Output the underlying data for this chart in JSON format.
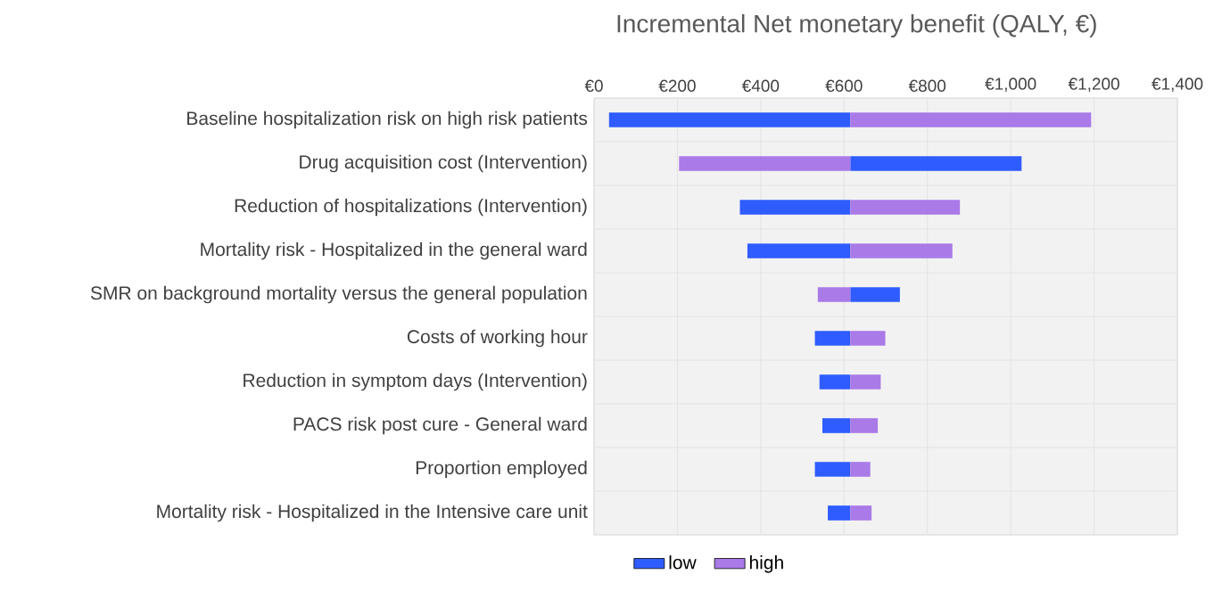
{
  "chart_data": {
    "type": "bar",
    "orientation": "horizontal",
    "title": "Incremental Net monetary benefit (QALY, €)",
    "categories": [
      "Baseline hospitalization risk on high risk patients",
      "Drug acquisition cost (Intervention)",
      "Reduction of hospitalizations (Intervention)",
      "Mortality risk - Hospitalized in the general ward",
      "SMR on background mortality versus the general population",
      "Costs of working hour",
      "Reduction in symptom days (Intervention)",
      "PACS risk post cure - General ward",
      "Proportion employed",
      "Mortality risk - Hospitalized in the Intensive care unit"
    ],
    "series": [
      {
        "name": "low",
        "color": "#2f5cff",
        "base": [
          615,
          615,
          615,
          615,
          615,
          615,
          615,
          615,
          615,
          615
        ],
        "values": [
          -579,
          411,
          -265,
          -247,
          119,
          -85,
          -74,
          -67,
          -85,
          -54
        ]
      },
      {
        "name": "high",
        "color": "#a97ae8",
        "base": [
          615,
          615,
          615,
          615,
          615,
          615,
          615,
          615,
          615,
          615
        ],
        "values": [
          578,
          -411,
          263,
          245,
          -78,
          84,
          73,
          66,
          48,
          51
        ]
      }
    ],
    "xlim": [
      0,
      1400
    ],
    "xticks": [
      {
        "value": 0,
        "label": "€0"
      },
      {
        "value": 200,
        "label": "€200"
      },
      {
        "value": 400,
        "label": "€400"
      },
      {
        "value": 600,
        "label": "€600"
      },
      {
        "value": 800,
        "label": "€800"
      },
      {
        "value": 1000,
        "label": "€1,000"
      },
      {
        "value": 1200,
        "label": "€1,200"
      },
      {
        "value": 1400,
        "label": "€1,400"
      }
    ],
    "grid": true,
    "legend": "bottom"
  }
}
